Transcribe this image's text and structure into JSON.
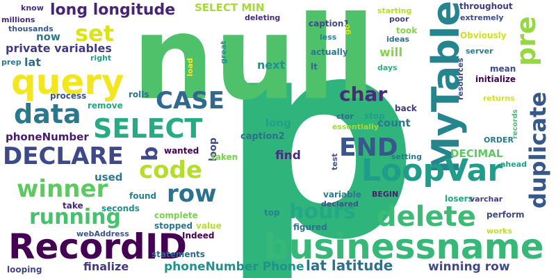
{
  "words": [
    {
      "text": "p",
      "color": "#2fb47c"
    },
    {
      "text": "null",
      "color": "#4fc16b"
    },
    {
      "text": "businessname",
      "color": "#37b878"
    },
    {
      "text": "MyTable",
      "color": "#25858e"
    },
    {
      "text": "LoopVar",
      "color": "#1f9d8a"
    },
    {
      "text": "RecordID",
      "color": "#440154"
    },
    {
      "text": "query",
      "color": "#f4e61e"
    },
    {
      "text": "delete",
      "color": "#3bbb75"
    },
    {
      "text": "duplicate",
      "color": "#38588c"
    },
    {
      "text": "pre",
      "color": "#95d840"
    },
    {
      "text": "data",
      "color": "#2a788e"
    },
    {
      "text": "code",
      "color": "#b5de2b"
    },
    {
      "text": "SELECT",
      "color": "#25ac82"
    },
    {
      "text": "CASE",
      "color": "#31688e"
    },
    {
      "text": "END",
      "color": "#38588c"
    },
    {
      "text": "DECLARE",
      "color": "#3e4989"
    },
    {
      "text": "winner",
      "color": "#5ec962"
    },
    {
      "text": "row",
      "color": "#2c718e"
    },
    {
      "text": "running",
      "color": "#48c16e"
    },
    {
      "text": "hours",
      "color": "#22a884"
    },
    {
      "text": "char",
      "color": "#472c7a"
    },
    {
      "text": "set",
      "color": "#dde318"
    },
    {
      "text": "b",
      "color": "#3e4989"
    },
    {
      "text": "long longitude",
      "color": "#482475"
    },
    {
      "text": "private variables",
      "color": "#453882"
    },
    {
      "text": "lat latitude",
      "color": "#2c728e"
    },
    {
      "text": "phoneNumber Phone",
      "color": "#20928c"
    },
    {
      "text": "winning row",
      "color": "#3f4889"
    },
    {
      "text": "finalize",
      "color": "#443983"
    },
    {
      "text": "phoneNumber",
      "color": "#481b6d"
    },
    {
      "text": "used",
      "color": "#2a788e"
    },
    {
      "text": "find",
      "color": "#46307e"
    },
    {
      "text": "loop",
      "color": "#3e4989"
    },
    {
      "text": "count",
      "color": "#29798e"
    },
    {
      "text": "long",
      "color": "#1fa088"
    },
    {
      "text": "will",
      "color": "#84d44b"
    },
    {
      "text": "now",
      "color": "#2a788e"
    },
    {
      "text": "lat",
      "color": "#2e6e8e"
    },
    {
      "text": "next",
      "color": "#20928c"
    },
    {
      "text": "SELECT MIN",
      "color": "#a5db36"
    },
    {
      "text": "DECIMAL",
      "color": "#5ec962"
    },
    {
      "text": "caption2",
      "color": "#2e6e8e"
    },
    {
      "text": "caption1",
      "color": "#3e4989"
    },
    {
      "text": "take",
      "color": "#482677"
    },
    {
      "text": "found",
      "color": "#27808e"
    },
    {
      "text": "complete",
      "color": "#7ad151"
    },
    {
      "text": "stopped",
      "color": "#2a788e"
    },
    {
      "text": "value",
      "color": "#b5de2b"
    },
    {
      "text": "Indeed",
      "color": "#440154"
    },
    {
      "text": "statements",
      "color": "#31688e"
    },
    {
      "text": "looping",
      "color": "#414487"
    },
    {
      "text": "seconds",
      "color": "#21918c"
    },
    {
      "text": "webAddress",
      "color": "#3b528b"
    },
    {
      "text": "process",
      "color": "#3b528b"
    },
    {
      "text": "rolls",
      "color": "#2c728e"
    },
    {
      "text": "remove",
      "color": "#22a884"
    },
    {
      "text": "wanted",
      "color": "#440154"
    },
    {
      "text": "taken",
      "color": "#7ad151"
    },
    {
      "text": "prep",
      "color": "#2a788e"
    },
    {
      "text": "right",
      "color": "#1f9e89"
    },
    {
      "text": "thousands",
      "color": "#39568c"
    },
    {
      "text": "millions",
      "color": "#482878"
    },
    {
      "text": "know",
      "color": "#472d7b"
    },
    {
      "text": "great",
      "color": "#21918c"
    },
    {
      "text": "load",
      "color": "#fde725"
    },
    {
      "text": "deleting",
      "color": "#472c7a"
    },
    {
      "text": "less",
      "color": "#26828e"
    },
    {
      "text": "go",
      "color": "#d8e219"
    },
    {
      "text": "actually",
      "color": "#2a788e"
    },
    {
      "text": "lt",
      "color": "#31688e"
    },
    {
      "text": "ideas",
      "color": "#2c728e"
    },
    {
      "text": "poor",
      "color": "#433e85"
    },
    {
      "text": "starting",
      "color": "#b5de2b"
    },
    {
      "text": "took",
      "color": "#86d549"
    },
    {
      "text": "days",
      "color": "#29af7f"
    },
    {
      "text": "throughout",
      "color": "#443983"
    },
    {
      "text": "extremely",
      "color": "#3e4989"
    },
    {
      "text": "Obviously",
      "color": "#d0e11c"
    },
    {
      "text": "server",
      "color": "#2a788e"
    },
    {
      "text": "mean",
      "color": "#3e4989"
    },
    {
      "text": "initialize",
      "color": "#440154"
    },
    {
      "text": "resources",
      "color": "#3e4989"
    },
    {
      "text": "returns",
      "color": "#d2e21b"
    },
    {
      "text": "records",
      "color": "#42be71"
    },
    {
      "text": "ORDER",
      "color": "#2a788e"
    },
    {
      "text": "ahead",
      "color": "#1fa088"
    },
    {
      "text": "back",
      "color": "#443983"
    },
    {
      "text": "stop",
      "color": "#1f9e89"
    },
    {
      "text": "ctor",
      "color": "#31688e"
    },
    {
      "text": "essentially",
      "color": "#a0da39"
    },
    {
      "text": "setting",
      "color": "#2a788e"
    },
    {
      "text": "test",
      "color": "#3b528b"
    },
    {
      "text": "variable",
      "color": "#2a788e"
    },
    {
      "text": "BEGIN",
      "color": "#481f70"
    },
    {
      "text": "declared",
      "color": "#3b528b"
    },
    {
      "text": "losers",
      "color": "#22a884"
    },
    {
      "text": "varchar",
      "color": "#453882"
    },
    {
      "text": "top",
      "color": "#27808e"
    },
    {
      "text": "figured",
      "color": "#2c728e"
    },
    {
      "text": "perform",
      "color": "#3e4989"
    },
    {
      "text": "works",
      "color": "#c0df25"
    }
  ]
}
